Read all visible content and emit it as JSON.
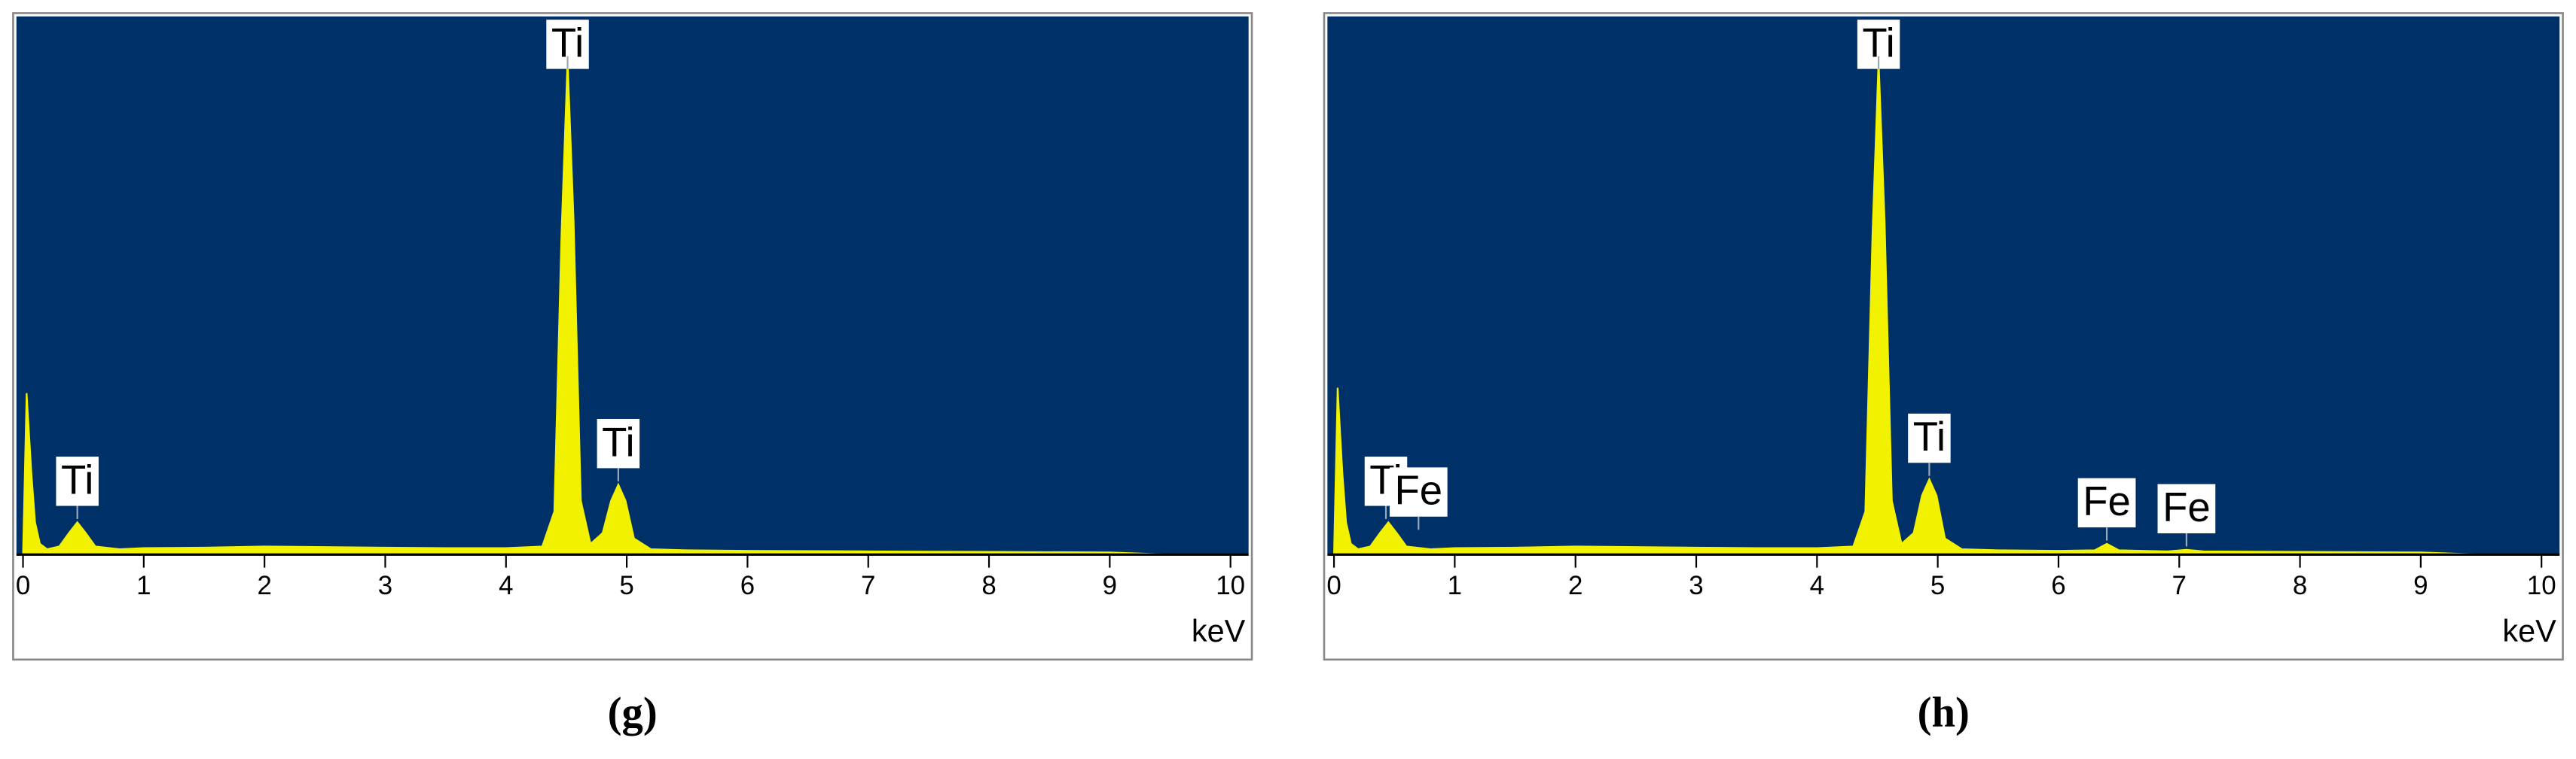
{
  "chart_data": [
    {
      "type": "area",
      "title": "(g)",
      "xlabel": "keV",
      "x": [
        0,
        0.03,
        0.07,
        0.1,
        0.14,
        0.2,
        0.3,
        0.38,
        0.45,
        0.52,
        0.6,
        0.8,
        1,
        1.5,
        2,
        2.5,
        3,
        3.5,
        4,
        4.3,
        4.4,
        4.46,
        4.51,
        4.56,
        4.62,
        4.7,
        4.8,
        4.87,
        4.93,
        4.99,
        5.06,
        5.2,
        5.5,
        6,
        7,
        8,
        9,
        9.5,
        10
      ],
      "values": [
        0,
        30,
        15,
        6,
        2,
        1,
        1.5,
        4,
        6,
        4,
        1.5,
        1,
        1.2,
        1.3,
        1.5,
        1.4,
        1.3,
        1.2,
        1.2,
        1.5,
        8,
        60,
        92,
        62,
        10,
        2,
        4,
        10,
        13,
        10,
        3,
        1,
        0.8,
        0.7,
        0.6,
        0.5,
        0.4,
        0,
        0
      ],
      "color": "#f2f200",
      "plot_background": "#003068",
      "xlim": [
        0,
        10
      ],
      "xticks": [
        0,
        1,
        2,
        3,
        4,
        5,
        6,
        7,
        8,
        9,
        10
      ],
      "ylim": [
        0,
        100
      ],
      "annotations": [
        {
          "text": "Ti",
          "x": 0.45
        },
        {
          "text": "Ti",
          "x": 4.51
        },
        {
          "text": "Ti",
          "x": 4.93
        }
      ]
    },
    {
      "type": "area",
      "title": "(h)",
      "xlabel": "keV",
      "x": [
        0,
        0.03,
        0.07,
        0.1,
        0.14,
        0.2,
        0.3,
        0.38,
        0.45,
        0.52,
        0.6,
        0.8,
        1,
        1.5,
        2,
        2.5,
        3,
        3.5,
        4,
        4.3,
        4.4,
        4.46,
        4.51,
        4.56,
        4.62,
        4.7,
        4.8,
        4.87,
        4.93,
        4.99,
        5.06,
        5.2,
        5.5,
        6,
        6.3,
        6.4,
        6.5,
        6.9,
        7.06,
        7.2,
        8,
        9,
        9.5,
        10
      ],
      "values": [
        0,
        31,
        15,
        6,
        2,
        1,
        1.5,
        4,
        6,
        4,
        1.5,
        1,
        1.2,
        1.3,
        1.5,
        1.4,
        1.3,
        1.2,
        1.2,
        1.5,
        8,
        60,
        92,
        62,
        10,
        2,
        4,
        11,
        14,
        11,
        3,
        1,
        0.8,
        0.7,
        0.8,
        2,
        0.8,
        0.6,
        0.9,
        0.6,
        0.5,
        0.4,
        0,
        0
      ],
      "color": "#f2f200",
      "plot_background": "#003068",
      "xlim": [
        0,
        10
      ],
      "xticks": [
        0,
        1,
        2,
        3,
        4,
        5,
        6,
        7,
        8,
        9,
        10
      ],
      "ylim": [
        0,
        100
      ],
      "annotations": [
        {
          "text": "Ti",
          "x": 0.43
        },
        {
          "text": "Fe",
          "x": 0.7
        },
        {
          "text": "Ti",
          "x": 4.51
        },
        {
          "text": "Ti",
          "x": 4.93
        },
        {
          "text": "Fe",
          "x": 6.4
        },
        {
          "text": "Fe",
          "x": 7.06
        }
      ]
    }
  ]
}
